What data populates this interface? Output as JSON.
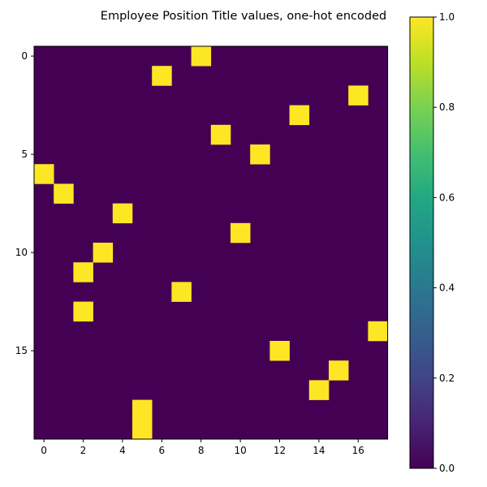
{
  "chart_data": {
    "type": "heatmap",
    "title": "Employee Position Title values, one-hot encoded",
    "xlabel": "",
    "ylabel": "",
    "rows": 20,
    "cols": 18,
    "hot_cells": [
      {
        "row": 0,
        "col": 8
      },
      {
        "row": 1,
        "col": 6
      },
      {
        "row": 2,
        "col": 16
      },
      {
        "row": 3,
        "col": 13
      },
      {
        "row": 4,
        "col": 9
      },
      {
        "row": 5,
        "col": 11
      },
      {
        "row": 6,
        "col": 0
      },
      {
        "row": 7,
        "col": 1
      },
      {
        "row": 8,
        "col": 4
      },
      {
        "row": 9,
        "col": 10
      },
      {
        "row": 10,
        "col": 3
      },
      {
        "row": 11,
        "col": 2
      },
      {
        "row": 12,
        "col": 7
      },
      {
        "row": 13,
        "col": 2
      },
      {
        "row": 14,
        "col": 17
      },
      {
        "row": 15,
        "col": 12
      },
      {
        "row": 16,
        "col": 15
      },
      {
        "row": 17,
        "col": 14
      },
      {
        "row": 18,
        "col": 5
      },
      {
        "row": 19,
        "col": 5
      }
    ],
    "x_ticks": [
      "0",
      "2",
      "4",
      "6",
      "8",
      "10",
      "12",
      "14",
      "16"
    ],
    "y_ticks": [
      "0",
      "5",
      "10",
      "15"
    ],
    "colorbar": {
      "range": [
        0.0,
        1.0
      ],
      "ticks": [
        "0.0",
        "0.2",
        "0.4",
        "0.6",
        "0.8",
        "1.0"
      ],
      "colormap": "viridis"
    },
    "colors": {
      "low": "#440154",
      "high": "#fde725"
    }
  }
}
